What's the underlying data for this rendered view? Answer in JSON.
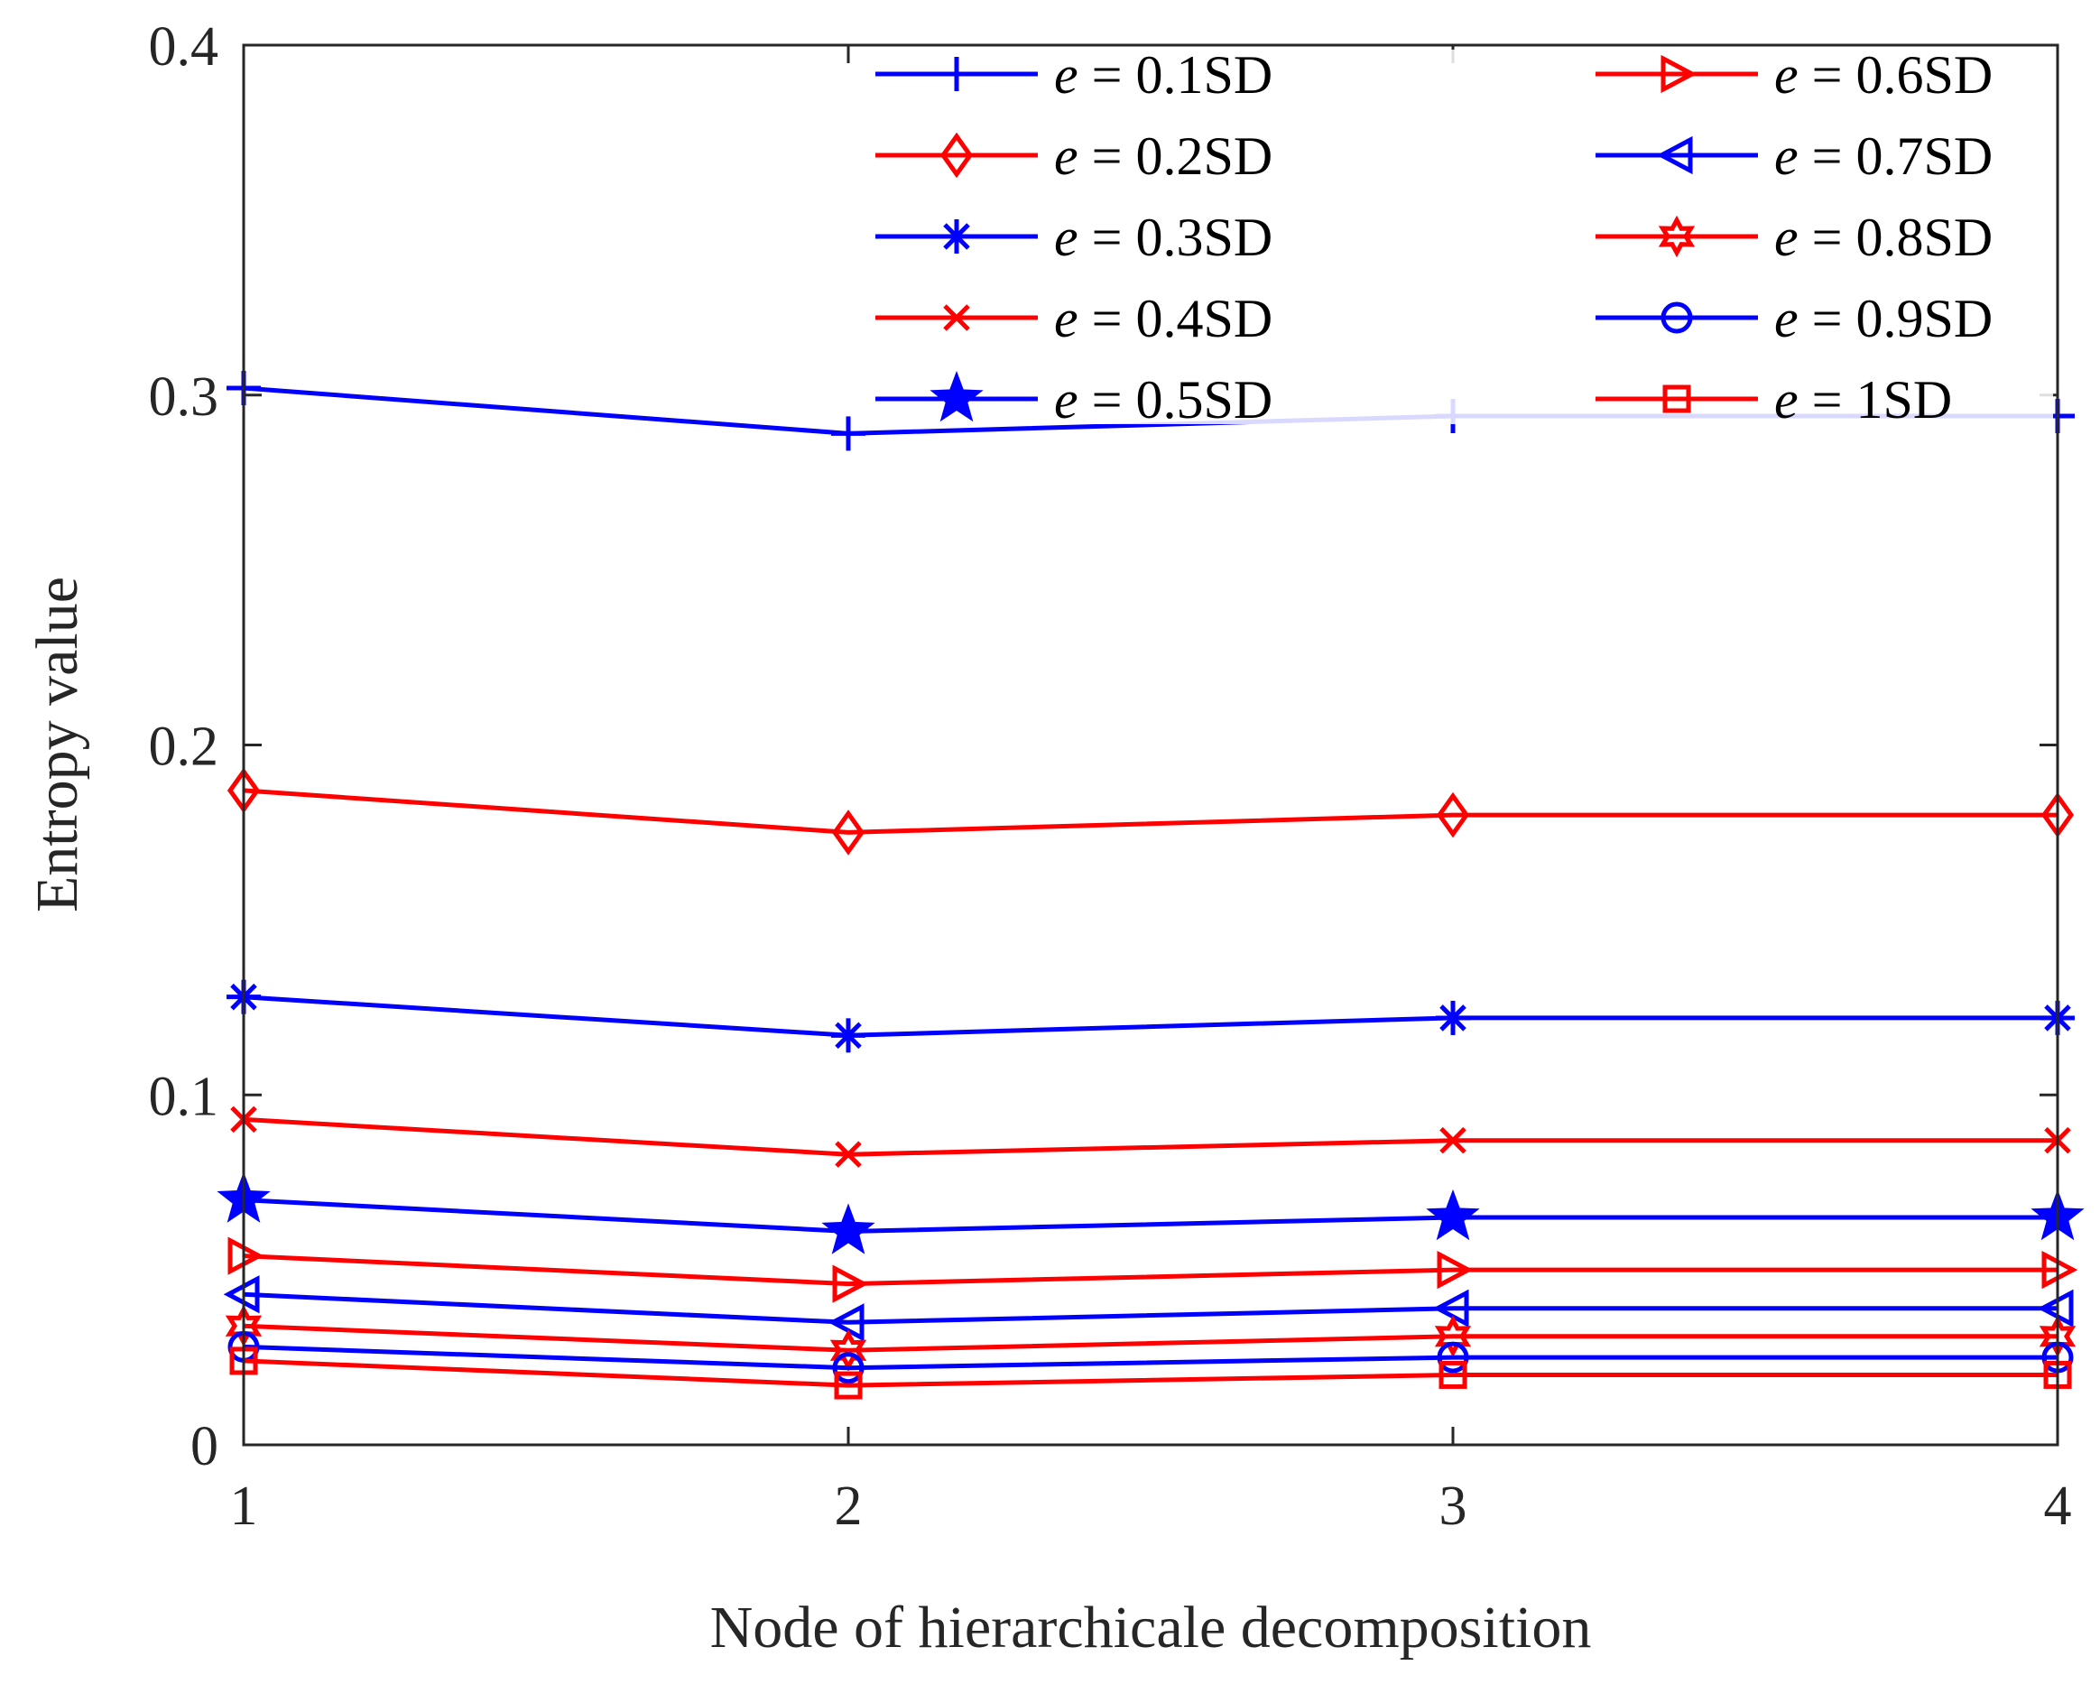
{
  "chart_data": {
    "type": "line",
    "title": "",
    "xlabel": "Node of hierarchicale decomposition",
    "ylabel": "Entropy value",
    "x": [
      1,
      2,
      3,
      4
    ],
    "xlim": [
      1,
      4
    ],
    "ylim": [
      0,
      0.4
    ],
    "xticks": [
      "1",
      "2",
      "3",
      "4"
    ],
    "yticks": [
      "0",
      "0.1",
      "0.2",
      "0.3",
      "0.4"
    ],
    "grid": false,
    "legend_position": "top-right, two columns",
    "series": [
      {
        "name": "e = 0.1SD",
        "symbol": "e",
        "rest": " = 0.1SD",
        "color": "#0000ff",
        "marker": "plus",
        "values": [
          0.302,
          0.289,
          0.294,
          0.294
        ]
      },
      {
        "name": "e = 0.2SD",
        "symbol": "e",
        "rest": " = 0.2SD",
        "color": "#ff0000",
        "marker": "diamond",
        "values": [
          0.187,
          0.175,
          0.18,
          0.18
        ]
      },
      {
        "name": "e = 0.3SD",
        "symbol": "e",
        "rest": " = 0.3SD",
        "color": "#0000ff",
        "marker": "asterisk",
        "values": [
          0.128,
          0.117,
          0.122,
          0.122
        ]
      },
      {
        "name": "e = 0.4SD",
        "symbol": "e",
        "rest": " = 0.4SD",
        "color": "#ff0000",
        "marker": "x",
        "values": [
          0.093,
          0.083,
          0.087,
          0.087
        ]
      },
      {
        "name": "e = 0.5SD",
        "symbol": "e",
        "rest": " = 0.5SD",
        "color": "#0000ff",
        "marker": "pentagram",
        "values": [
          0.07,
          0.061,
          0.065,
          0.065
        ]
      },
      {
        "name": "e = 0.6SD",
        "symbol": "e",
        "rest": " = 0.6SD",
        "color": "#ff0000",
        "marker": "triangle-right",
        "values": [
          0.054,
          0.046,
          0.05,
          0.05
        ]
      },
      {
        "name": "e = 0.7SD",
        "symbol": "e",
        "rest": " = 0.7SD",
        "color": "#0000ff",
        "marker": "triangle-left",
        "values": [
          0.043,
          0.035,
          0.039,
          0.039
        ]
      },
      {
        "name": "e = 0.8SD",
        "symbol": "e",
        "rest": " = 0.8SD",
        "color": "#ff0000",
        "marker": "hexagram",
        "values": [
          0.034,
          0.027,
          0.031,
          0.031
        ]
      },
      {
        "name": "e = 0.9SD",
        "symbol": "e",
        "rest": " = 0.9SD",
        "color": "#0000ff",
        "marker": "circle",
        "values": [
          0.028,
          0.022,
          0.025,
          0.025
        ]
      },
      {
        "name": "e = 1SD",
        "symbol": "e",
        "rest": " = 1SD",
        "color": "#ff0000",
        "marker": "square",
        "values": [
          0.024,
          0.017,
          0.02,
          0.02
        ]
      }
    ]
  }
}
